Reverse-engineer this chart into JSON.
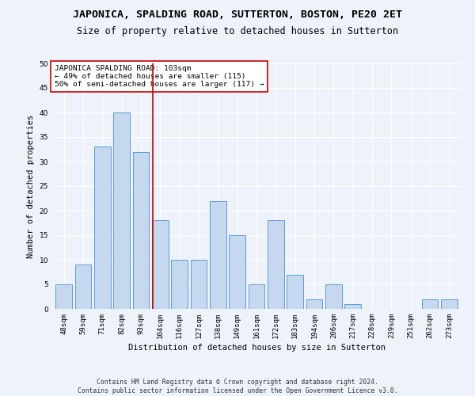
{
  "title": "JAPONICA, SPALDING ROAD, SUTTERTON, BOSTON, PE20 2ET",
  "subtitle": "Size of property relative to detached houses in Sutterton",
  "xlabel": "Distribution of detached houses by size in Sutterton",
  "ylabel": "Number of detached properties",
  "footer_line1": "Contains HM Land Registry data © Crown copyright and database right 2024.",
  "footer_line2": "Contains public sector information licensed under the Open Government Licence v3.0.",
  "bar_labels": [
    "48sqm",
    "59sqm",
    "71sqm",
    "82sqm",
    "93sqm",
    "104sqm",
    "116sqm",
    "127sqm",
    "138sqm",
    "149sqm",
    "161sqm",
    "172sqm",
    "183sqm",
    "194sqm",
    "206sqm",
    "217sqm",
    "228sqm",
    "239sqm",
    "251sqm",
    "262sqm",
    "273sqm"
  ],
  "bar_values": [
    5,
    9,
    33,
    40,
    32,
    18,
    10,
    10,
    22,
    15,
    5,
    18,
    7,
    2,
    5,
    1,
    0,
    0,
    0,
    2,
    2
  ],
  "bar_color": "#c5d8f0",
  "bar_edge_color": "#5b9bd5",
  "background_color": "#eef2fb",
  "grid_color": "#ffffff",
  "red_line_x": 4.62,
  "annotation_text_line1": "JAPONICA SPALDING ROAD: 103sqm",
  "annotation_text_line2": "← 49% of detached houses are smaller (115)",
  "annotation_text_line3": "50% of semi-detached houses are larger (117) →",
  "annotation_box_color": "#ffffff",
  "annotation_box_edge_color": "#cc0000",
  "red_line_color": "#cc0000",
  "ylim": [
    0,
    50
  ],
  "yticks": [
    0,
    5,
    10,
    15,
    20,
    25,
    30,
    35,
    40,
    45,
    50
  ],
  "title_fontsize": 9.5,
  "subtitle_fontsize": 8.5,
  "axis_label_fontsize": 7.5,
  "tick_fontsize": 6.5,
  "annotation_fontsize": 6.8,
  "footer_fontsize": 5.8
}
